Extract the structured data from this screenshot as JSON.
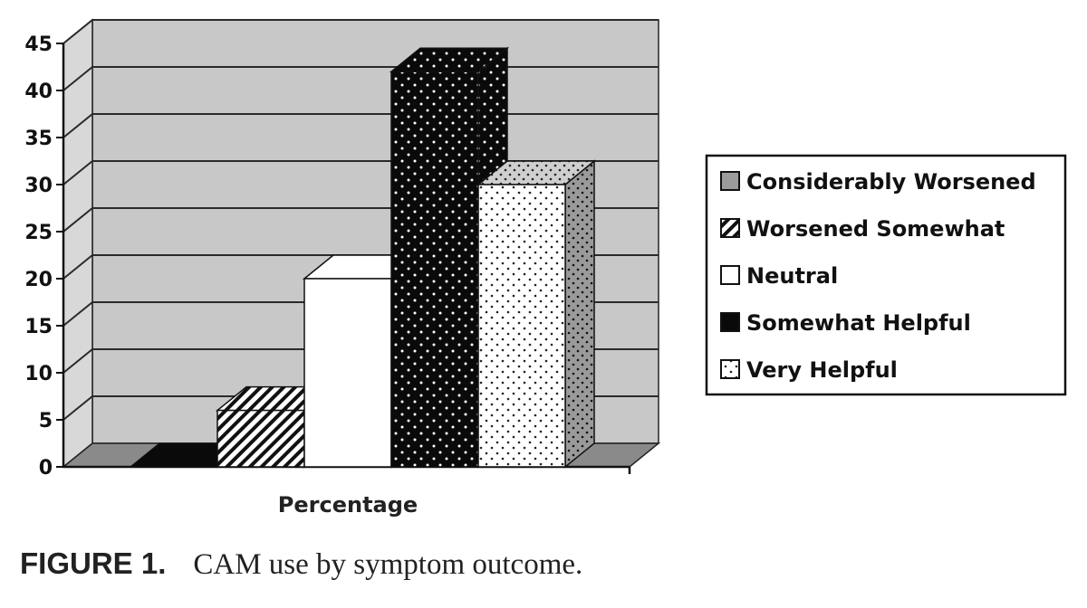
{
  "chart_data": {
    "type": "bar",
    "xlabel": "Percentage",
    "ylabel": "",
    "ylim": [
      0,
      45
    ],
    "yticks": [
      "0",
      "5",
      "10",
      "15",
      "20",
      "25",
      "30",
      "35",
      "40",
      "45"
    ],
    "grid": true,
    "legend_position": "right",
    "style": "3d",
    "series": [
      {
        "name": "Considerably Worsened",
        "values": [
          0
        ]
      },
      {
        "name": "Worsened Somewhat",
        "values": [
          6
        ]
      },
      {
        "name": "Neutral",
        "values": [
          20
        ]
      },
      {
        "name": "Somewhat Helpful",
        "values": [
          42
        ]
      },
      {
        "name": "Very Helpful",
        "values": [
          30
        ]
      }
    ],
    "categories": [
      "Percentage"
    ]
  },
  "caption": {
    "label": "FIGURE 1.",
    "text": "CAM use by symptom outcome."
  },
  "colors": {
    "wall": "#c8c8c8",
    "floor": "#8a8a8a",
    "grid": "#2a2a2a"
  }
}
